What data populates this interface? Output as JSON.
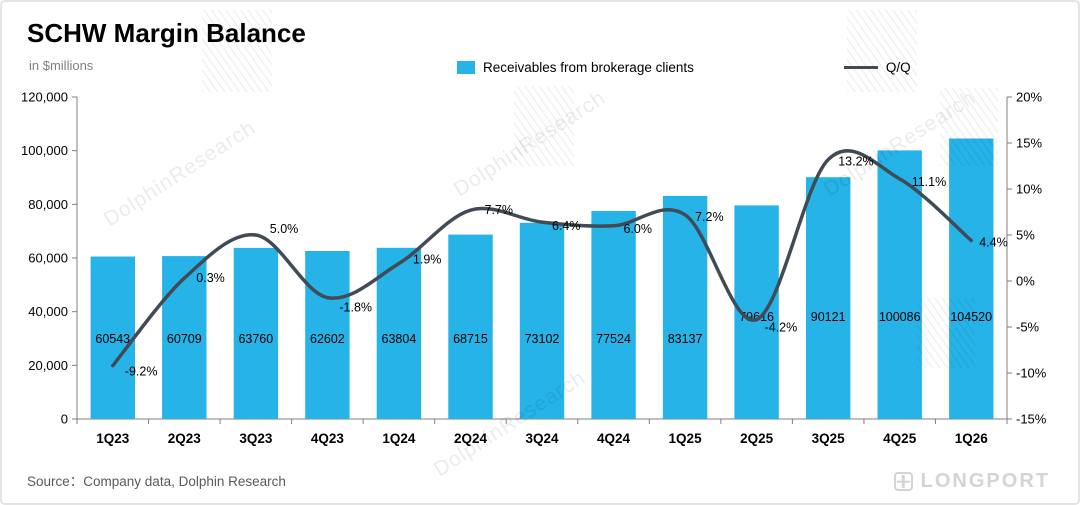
{
  "header": {
    "title": "SCHW Margin Balance",
    "subtitle": "in $millions"
  },
  "legend": {
    "bar_label": "Receivables from brokerage clients",
    "line_label": "Q/Q"
  },
  "source": "Source：Company data, Dolphin Research",
  "watermark": {
    "text": "DolphinResearch",
    "brand": "LONGPORT"
  },
  "chart_data": {
    "type": "bar+line",
    "title": "SCHW Margin Balance",
    "subtitle": "in $millions",
    "categories": [
      "1Q23",
      "2Q23",
      "3Q23",
      "4Q23",
      "1Q24",
      "2Q24",
      "3Q24",
      "4Q24",
      "1Q25",
      "2Q25",
      "3Q25",
      "4Q25",
      "1Q26"
    ],
    "series": [
      {
        "name": "Receivables from brokerage clients",
        "type": "bar",
        "axis": "left",
        "color": "#25B3E8",
        "values": [
          60543,
          60709,
          63760,
          62602,
          63804,
          68715,
          73102,
          77524,
          83137,
          79616,
          90121,
          100086,
          104520
        ]
      },
      {
        "name": "Q/Q",
        "type": "line",
        "axis": "right",
        "color": "#404B55",
        "values_pct": [
          -9.2,
          0.3,
          5.0,
          -1.8,
          1.9,
          7.7,
          6.4,
          6.0,
          7.2,
          -4.2,
          13.2,
          11.1,
          4.4
        ]
      }
    ],
    "left_axis": {
      "label": "in $millions",
      "min": 0,
      "max": 120000,
      "step": 20000,
      "tick_labels": [
        "0",
        "20,000",
        "40,000",
        "60,000",
        "80,000",
        "100,000",
        "120,000"
      ]
    },
    "right_axis": {
      "min": -15,
      "max": 20,
      "step": 5,
      "tick_labels": [
        "-15%",
        "-10%",
        "-5%",
        "0%",
        "5%",
        "10%",
        "15%",
        "20%"
      ]
    },
    "point_labels": [
      "-9.2%",
      "0.3%",
      "5.0%",
      "-1.8%",
      "1.9%",
      "7.7%",
      "6.4%",
      "6.0%",
      "7.2%",
      "-4.2%",
      "13.2%",
      "11.1%",
      "4.4%"
    ],
    "legend_position": "top",
    "grid": false
  }
}
